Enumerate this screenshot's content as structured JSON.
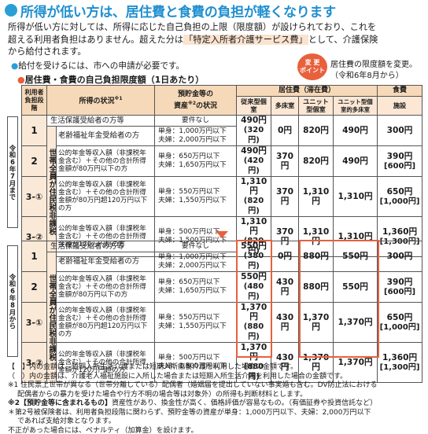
{
  "title": "所得が低い方は、居住費と食費の負担が軽くなります",
  "intro": {
    "line1": "所得が低い方に対しては、所得に応じた自己負担の上限（限度額）が設けられており、これを",
    "line2_a": "超える利用者負担はありません。超えた分は",
    "line2_hl": "「特定入所者介護サービス費」",
    "line2_b": "として、介護保険",
    "line3": "から給付されます。"
  },
  "note": "給付を受けるには、市への申請が必要です。",
  "badge": {
    "line1": "変 更",
    "line2": "ポイント"
  },
  "change_note": {
    "line1": "居住費の限度額を変更。",
    "line2": "（令和6年8月から）"
  },
  "table_title": "居住費・食費の自己負担限度額（1日あたり）",
  "headers": {
    "stage": "利用者負担段階",
    "income": "所得の状況",
    "income_sup": "※1",
    "asset_a": "預貯金等の",
    "asset_b": "資産",
    "asset_sup": "※2",
    "asset_c": "の状況",
    "residence": "居住費（滞在費）",
    "food": "食費",
    "res_cols": [
      "従来型個室",
      "多床室",
      "ユニット型個室",
      "ユニット型個室的多床室"
    ],
    "food_col": "施設"
  },
  "side_labels": {
    "before": "令和6年7月まで",
    "after": "令和6年8月から"
  },
  "setai_label": {
    "a": "世帯全員が",
    "b": "住民税非課税"
  },
  "rows_before": [
    {
      "stage": "1",
      "cond": "生活保護受給者の方等",
      "asset1": "要件なし",
      "asset2": "",
      "c1": "490円",
      "c1b": "(320円)",
      "c2": "0円",
      "c3": "820円",
      "c4": "490円",
      "f": "300円",
      "fb": ""
    },
    {
      "stage": "",
      "cond": "老齢福祉年金受給者の方",
      "asset1": "単身：1,000万円以下",
      "asset2": "夫婦：2,000万円以下",
      "c1": "",
      "c1b": "",
      "c2": "",
      "c3": "",
      "c4": "",
      "f": "",
      "fb": ""
    },
    {
      "stage": "2",
      "cond": "公的年金等収入額（非課税年金含む）＋その他の合計所得金額が80万円以下の方",
      "asset1": "単身：650万円以下",
      "asset2": "夫婦：1,650万円以下",
      "c1": "490円",
      "c1b": "(420円)",
      "c2": "370円",
      "c3": "820円",
      "c4": "490円",
      "f": "390円",
      "fb": "[600円]"
    },
    {
      "stage": "3-①",
      "cond": "公的年金等収入額（非課税年金含む）＋その他の合計所得金額が80万円超120万円以下の方",
      "asset1": "単身：550万円以下",
      "asset2": "夫婦：1,550万円以下",
      "c1": "1,310円",
      "c1b": "(820円)",
      "c2": "370円",
      "c3": "1,310円",
      "c4": "1,310円",
      "f": "650円",
      "fb": "[1,000円]"
    },
    {
      "stage": "3-②",
      "cond": "公的年金等収入額（非課税年金含む）＋その他の合計所得金額が120万円超の方",
      "asset1": "単身：500万円以下",
      "asset2": "夫婦：1,500万円以下",
      "c1": "1,310円",
      "c1b": "(820円)",
      "c2": "370円",
      "c3": "1,310円",
      "c4": "1,310円",
      "f": "1,360円",
      "fb": "[1,300円]"
    }
  ],
  "rows_after": [
    {
      "stage": "1",
      "cond": "生活保護受給者の方等",
      "asset1": "要件なし",
      "asset2": "",
      "c1": "550円",
      "c1b": "(380円)",
      "c2": "0円",
      "c3": "880円",
      "c4": "550円",
      "f": "300円",
      "fb": ""
    },
    {
      "stage": "",
      "cond": "老齢福祉年金受給者の方",
      "asset1": "単身：1,000万円以下",
      "asset2": "夫婦：2,000万円以下",
      "c1": "",
      "c1b": "",
      "c2": "",
      "c3": "",
      "c4": "",
      "f": "",
      "fb": ""
    },
    {
      "stage": "2",
      "cond": "公的年金等収入額（非課税年金含む）＋その他の合計所得金額が80万円以下の方",
      "asset1": "単身：650万円以下",
      "asset2": "夫婦：1,650万円以下",
      "c1": "550円",
      "c1b": "(480円)",
      "c2": "430円",
      "c3": "880円",
      "c4": "550円",
      "f": "390円",
      "fb": "[600円]"
    },
    {
      "stage": "3-①",
      "cond": "公的年金等収入額（非課税年金含む）＋その他の合計所得金額が80万円超120万円以下の方",
      "asset1": "単身：550万円以下",
      "asset2": "夫婦：1,550万円以下",
      "c1": "1,370円",
      "c1b": "(880円)",
      "c2": "430円",
      "c3": "1,370円",
      "c4": "1,370円",
      "f": "650円",
      "fb": "[1,000円]"
    },
    {
      "stage": "3-②",
      "cond": "公的年金等収入額（非課税年金含む）＋その他の合計所得金額が120万円超の方",
      "asset1": "単身：500万円以下",
      "asset2": "夫婦：1,500万円以下",
      "c1": "1,370円",
      "c1b": "(880円)",
      "c2": "430円",
      "c3": "1,370円",
      "c4": "1,370円",
      "f": "1,360円",
      "fb": "[1,300円]"
    }
  ],
  "footnotes": {
    "f1": "【　】内の金額は、短期入所生活介護または短期入所療養介護を利用した場合の金額です。",
    "f2": "（　）内の金額は、介護老人福祉施設に入所した場合または短期入所生活介護を利用した場合の金額です。",
    "f3a": "※1 住民票上世帯が異なる（世帯分離している）配偶者（婚姻届を提出していない事実婚も含む。DV防止法における",
    "f3b": "配偶者からの暴力を受けた場合や行方不明の場合等は対象外）の所得も判断材料とします。",
    "f4_label": "※2【預貯金等に含まれるもの】",
    "f4_text": "資産性があり、換金性が高く、価格評価が容易なもの。（有価証券や投資信託など）",
    "f5a": "＊第2号被保険者は、利用者負担段階に関わらず、預貯金等の資産が単身：1,000万円以下、夫婦：2,000万円以下",
    "f5b": "であれば支給対象となります。",
    "f6": "不正があった場合には、ペナルティ（加算金）を設けます。"
  }
}
